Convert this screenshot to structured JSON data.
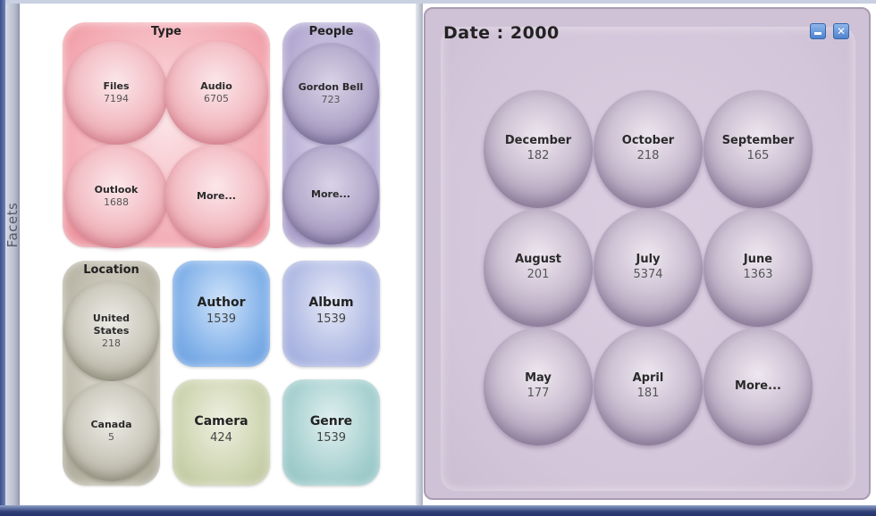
{
  "facets_label": "Facets",
  "type_group": {
    "title": "Type",
    "items": [
      {
        "label": "Files",
        "count": "7194"
      },
      {
        "label": "Audio",
        "count": "6705"
      },
      {
        "label": "Outlook",
        "count": "1688"
      },
      {
        "label": "More...",
        "count": ""
      }
    ]
  },
  "people_group": {
    "title": "People",
    "items": [
      {
        "label": "Gordon Bell",
        "count": "723"
      },
      {
        "label": "More...",
        "count": ""
      }
    ]
  },
  "location_group": {
    "title": "Location",
    "items": [
      {
        "label_line1": "United",
        "label_line2": "States",
        "count": "218"
      },
      {
        "label": "Canada",
        "count": "5"
      }
    ]
  },
  "tiles": {
    "author": {
      "label": "Author",
      "count": "1539"
    },
    "album": {
      "label": "Album",
      "count": "1539"
    },
    "camera": {
      "label": "Camera",
      "count": "424"
    },
    "genre": {
      "label": "Genre",
      "count": "1539"
    }
  },
  "date_panel": {
    "title": "Date : 2000",
    "minimize_icon": "minimize-icon",
    "close_icon": "close-icon",
    "close_glyph": "✕",
    "months": [
      {
        "label": "December",
        "count": "182"
      },
      {
        "label": "October",
        "count": "218"
      },
      {
        "label": "September",
        "count": "165"
      },
      {
        "label": "August",
        "count": "201"
      },
      {
        "label": "July",
        "count": "5374"
      },
      {
        "label": "June",
        "count": "1363"
      },
      {
        "label": "May",
        "count": "177"
      },
      {
        "label": "April",
        "count": "181"
      },
      {
        "label": "More...",
        "count": ""
      }
    ]
  },
  "colors": {
    "type": "#f3a7b0",
    "people": "#b2a8d0",
    "location": "#b9b6a6",
    "author": "#86b4ea",
    "album": "#b3bde5",
    "camera": "#cfd6b3",
    "genre": "#a9d1d1",
    "date_panel": "#cfc2d6",
    "window_button": "#4f82cc"
  }
}
